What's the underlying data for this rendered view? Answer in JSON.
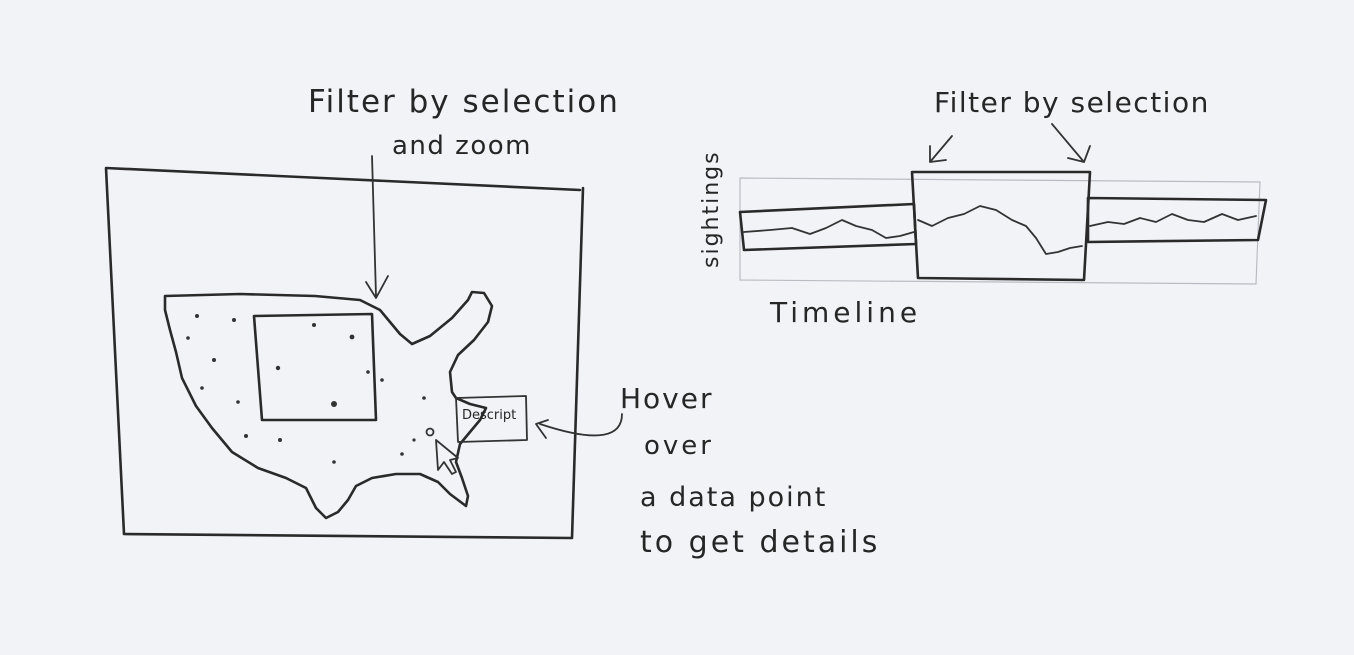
{
  "map_panel": {
    "annotation_line1": "Filter by selection",
    "annotation_line2": "and zoom",
    "tooltip_label": "Descript",
    "hover_line1": "Hover",
    "hover_line2": "over",
    "hover_line3": "a data point",
    "hover_line4": "to get details"
  },
  "timeline_panel": {
    "annotation": "Filter by selection",
    "y_label": "sightings",
    "x_label": "Timeline"
  }
}
